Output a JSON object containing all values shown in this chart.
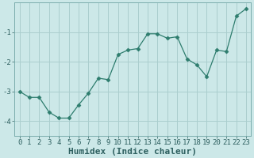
{
  "x": [
    0,
    1,
    2,
    3,
    4,
    5,
    6,
    7,
    8,
    9,
    10,
    11,
    12,
    13,
    14,
    15,
    16,
    17,
    18,
    19,
    20,
    21,
    22,
    23
  ],
  "y": [
    -3.0,
    -3.2,
    -3.2,
    -3.7,
    -3.9,
    -3.9,
    -3.45,
    -3.05,
    -2.55,
    -2.6,
    -1.75,
    -1.6,
    -1.55,
    -1.05,
    -1.05,
    -1.2,
    -1.15,
    -1.9,
    -2.1,
    -2.5,
    -1.6,
    -1.65,
    -0.45,
    -0.2
  ],
  "xlabel": "Humidex (Indice chaleur)",
  "xlim": [
    -0.5,
    23.5
  ],
  "ylim": [
    -4.5,
    -0.0
  ],
  "yticks": [
    -4,
    -3,
    -2,
    -1
  ],
  "xticks": [
    0,
    1,
    2,
    3,
    4,
    5,
    6,
    7,
    8,
    9,
    10,
    11,
    12,
    13,
    14,
    15,
    16,
    17,
    18,
    19,
    20,
    21,
    22,
    23
  ],
  "line_color": "#2e7d6e",
  "marker": "D",
  "marker_size": 2.5,
  "bg_color": "#cce8e8",
  "grid_color": "#aacece",
  "xlabel_fontsize": 8,
  "tick_fontsize": 6.5
}
